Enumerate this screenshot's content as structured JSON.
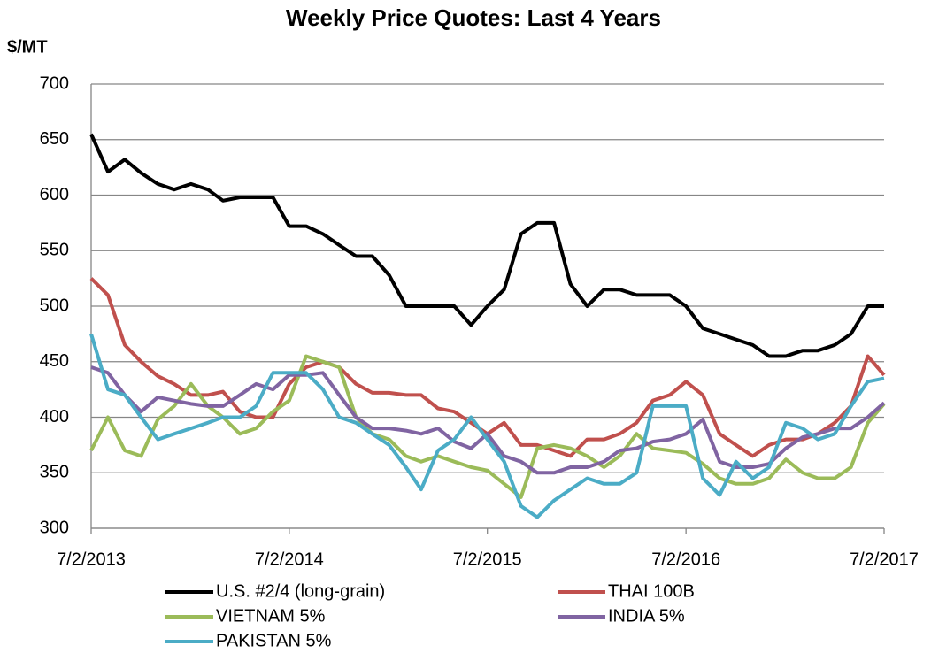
{
  "chart_data": {
    "type": "line",
    "title": "Weekly Price Quotes:  Last 4 Years",
    "y_label": "$/MT",
    "x": [
      "7/2/2013",
      "8/2/2013",
      "9/2/2013",
      "10/2/2013",
      "11/2/2013",
      "12/2/2013",
      "1/2/2014",
      "2/2/2014",
      "3/2/2014",
      "4/2/2014",
      "5/2/2014",
      "6/2/2014",
      "7/2/2014",
      "8/2/2014",
      "9/2/2014",
      "10/2/2014",
      "11/2/2014",
      "12/2/2014",
      "1/2/2015",
      "2/2/2015",
      "3/2/2015",
      "4/2/2015",
      "5/2/2015",
      "6/2/2015",
      "7/2/2015",
      "8/2/2015",
      "9/2/2015",
      "10/2/2015",
      "11/2/2015",
      "12/2/2015",
      "1/2/2016",
      "2/2/2016",
      "3/2/2016",
      "4/2/2016",
      "5/2/2016",
      "6/2/2016",
      "7/2/2016",
      "8/2/2016",
      "9/2/2016",
      "10/2/2016",
      "11/2/2016",
      "12/2/2016",
      "1/2/2017",
      "2/2/2017",
      "3/2/2017",
      "4/2/2017",
      "5/2/2017",
      "6/2/2017",
      "7/2/2017"
    ],
    "xlim": [
      "7/2/2013",
      "7/2/2017"
    ],
    "xticks": [
      "7/2/2013",
      "7/2/2014",
      "7/2/2015",
      "7/2/2016",
      "7/2/2017"
    ],
    "ylim": [
      300,
      700
    ],
    "yticks": [
      300,
      350,
      400,
      450,
      500,
      550,
      600,
      650,
      700
    ],
    "grid": true,
    "legend": "bottom",
    "series": [
      {
        "name": "U.S. #2/4 (long-grain)",
        "color": "#000000",
        "values": [
          655,
          621,
          632,
          620,
          610,
          605,
          610,
          605,
          595,
          598,
          598,
          598,
          572,
          572,
          565,
          555,
          545,
          545,
          528,
          500,
          500,
          500,
          500,
          483,
          500,
          515,
          565,
          575,
          575,
          520,
          500,
          515,
          515,
          510,
          510,
          510,
          500,
          480,
          475,
          470,
          465,
          455,
          455,
          460,
          460,
          465,
          475,
          500,
          500
        ]
      },
      {
        "name": "THAI 100B",
        "color": "#c0504d",
        "values": [
          525,
          510,
          465,
          450,
          437,
          430,
          420,
          420,
          423,
          405,
          400,
          400,
          430,
          445,
          450,
          445,
          430,
          422,
          422,
          420,
          420,
          408,
          405,
          395,
          385,
          395,
          375,
          375,
          370,
          365,
          380,
          380,
          385,
          395,
          415,
          420,
          432,
          420,
          385,
          375,
          365,
          375,
          380,
          380,
          385,
          395,
          410,
          455,
          438
        ]
      },
      {
        "name": "VIETNAM 5%",
        "color": "#9bbb59",
        "values": [
          370,
          400,
          370,
          365,
          398,
          410,
          430,
          410,
          400,
          385,
          390,
          405,
          415,
          455,
          450,
          445,
          400,
          385,
          380,
          365,
          360,
          365,
          360,
          355,
          352,
          340,
          328,
          372,
          375,
          372,
          365,
          355,
          365,
          385,
          372,
          370,
          368,
          358,
          345,
          340,
          340,
          345,
          362,
          350,
          345,
          345,
          355,
          395,
          412
        ]
      },
      {
        "name": "INDIA 5%",
        "color": "#8064a2",
        "values": [
          445,
          440,
          420,
          405,
          418,
          415,
          412,
          410,
          410,
          420,
          430,
          425,
          438,
          438,
          440,
          420,
          400,
          390,
          390,
          388,
          385,
          390,
          378,
          372,
          385,
          365,
          360,
          350,
          350,
          355,
          355,
          360,
          370,
          372,
          378,
          380,
          385,
          398,
          360,
          355,
          355,
          358,
          372,
          382,
          385,
          390,
          390,
          400,
          413
        ]
      },
      {
        "name": "PAKISTAN 5%",
        "color": "#4bacc6",
        "values": [
          475,
          425,
          420,
          400,
          380,
          385,
          390,
          395,
          400,
          400,
          410,
          440,
          440,
          440,
          425,
          400,
          395,
          385,
          375,
          355,
          335,
          370,
          380,
          400,
          380,
          360,
          320,
          310,
          325,
          335,
          345,
          340,
          340,
          350,
          410,
          410,
          410,
          345,
          330,
          360,
          345,
          355,
          395,
          390,
          380,
          385,
          410,
          432,
          435
        ]
      }
    ]
  }
}
